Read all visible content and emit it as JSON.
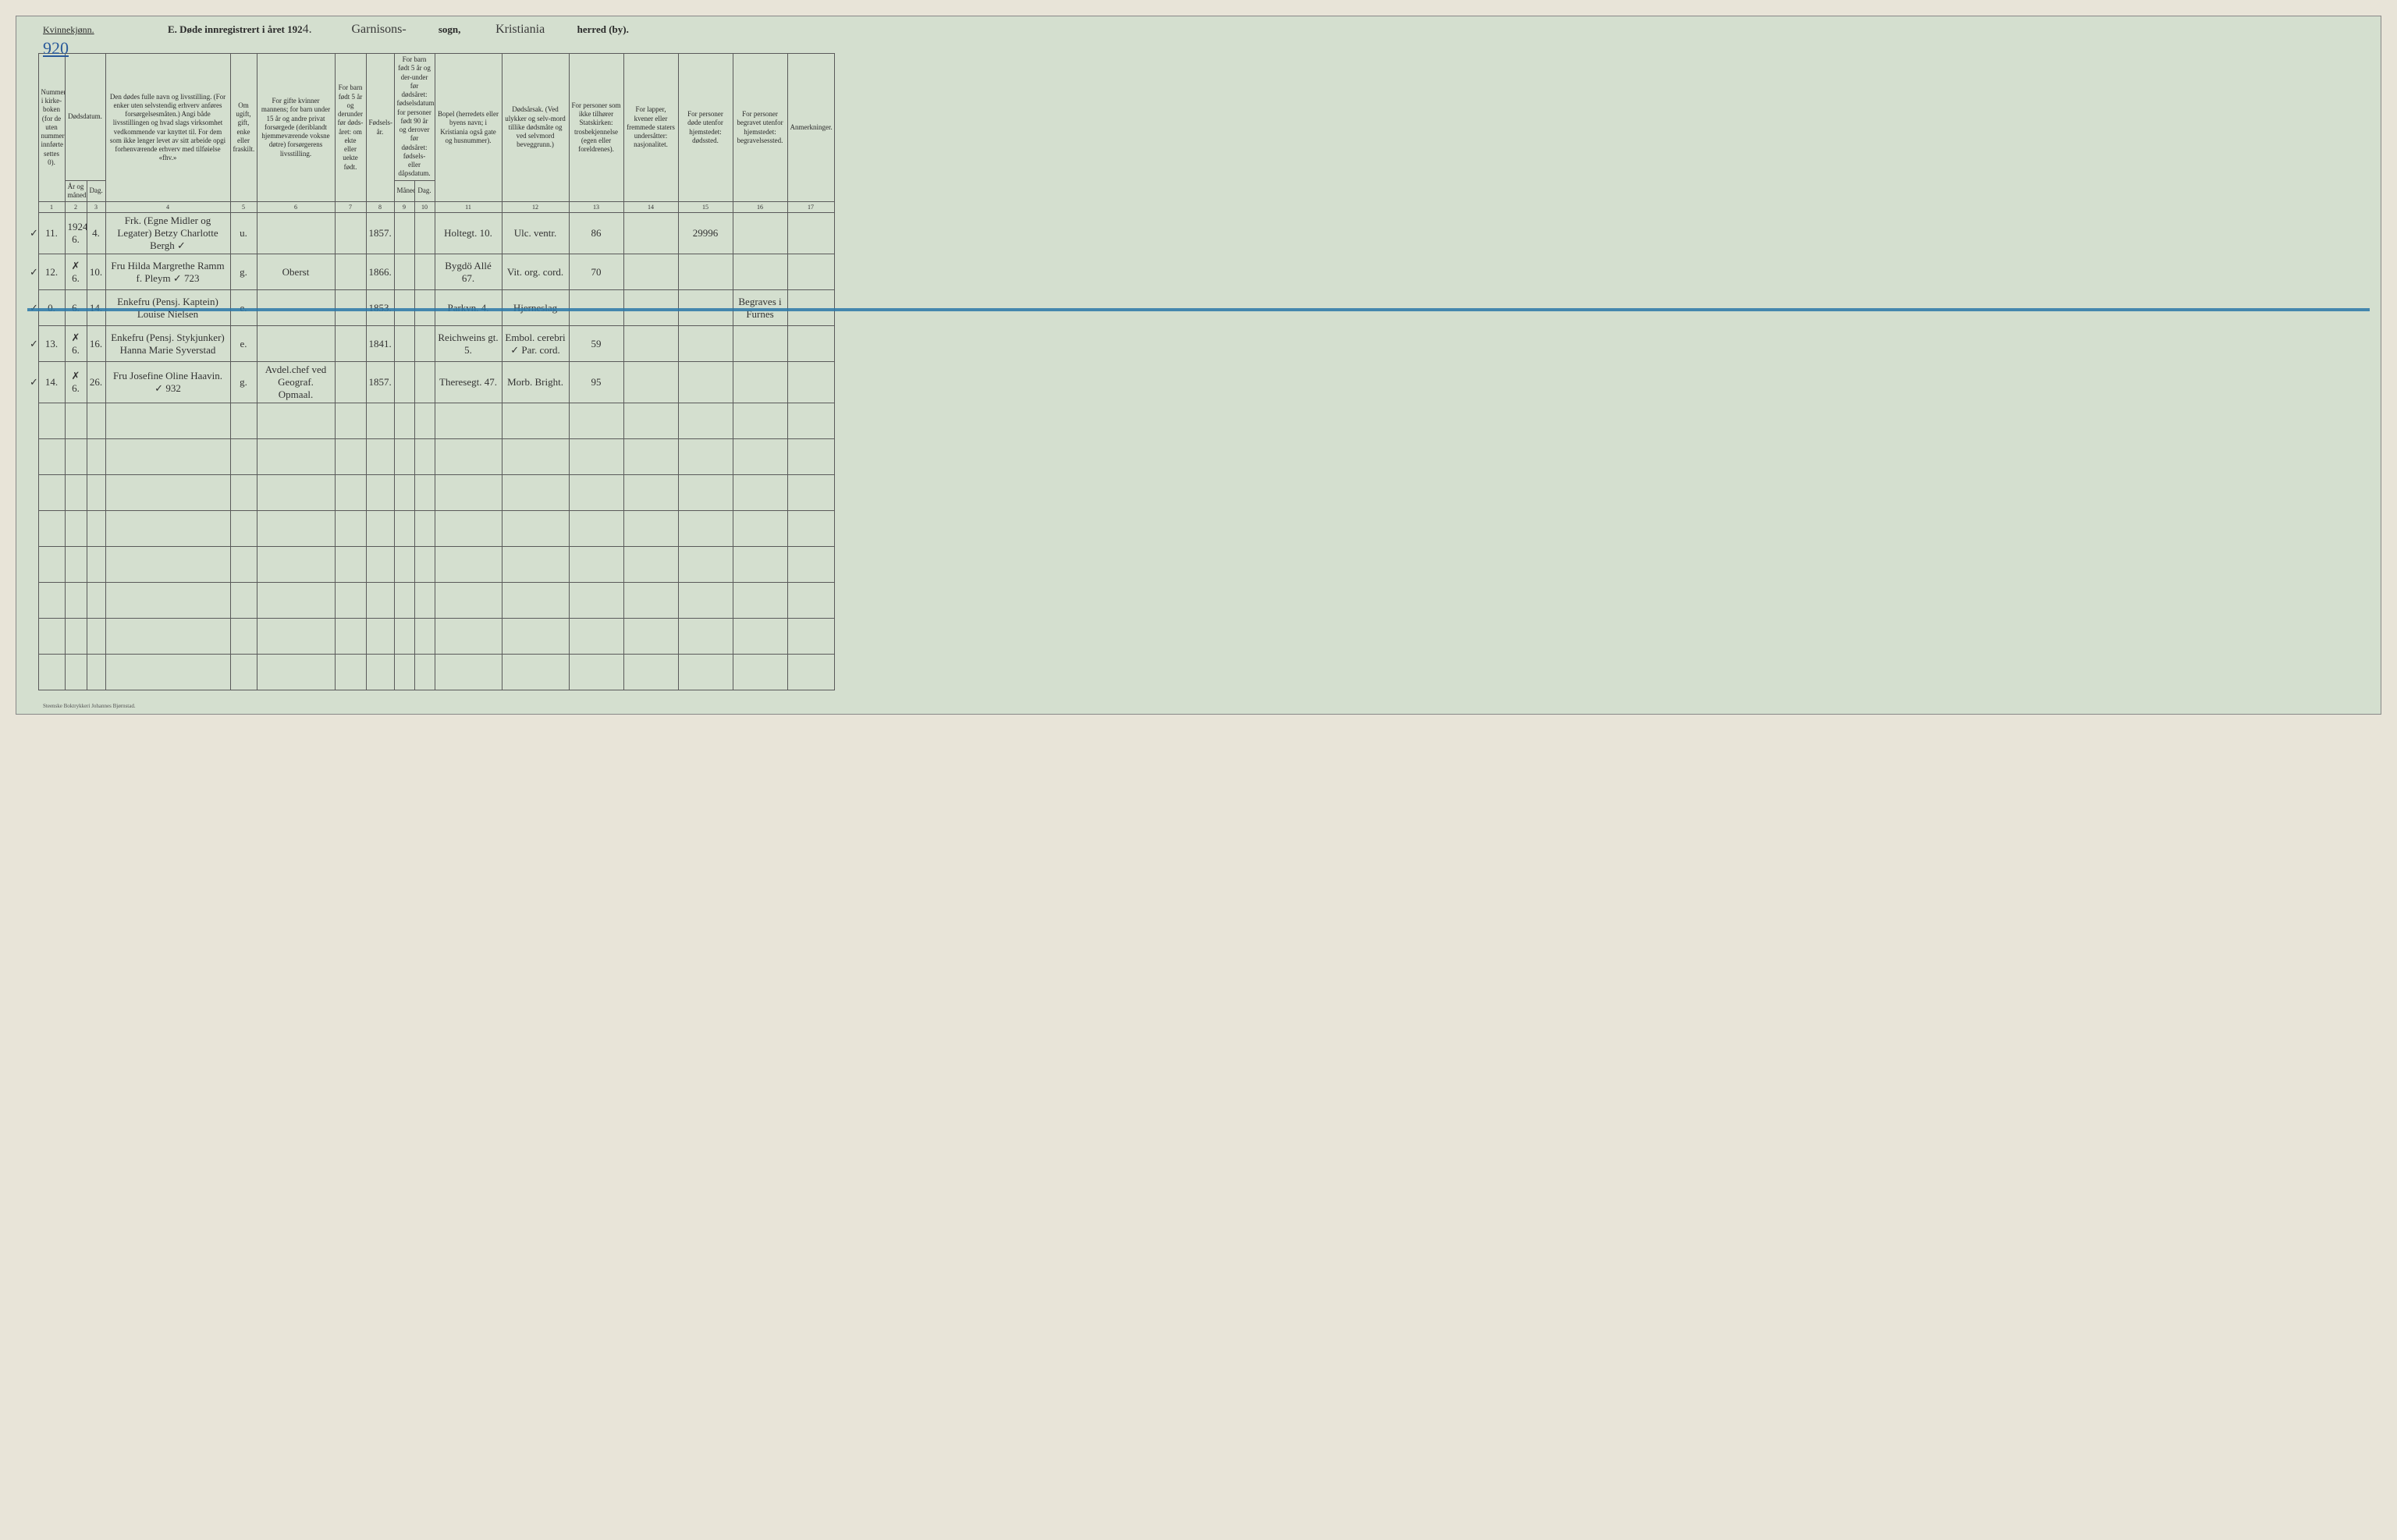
{
  "page": {
    "background_color": "#d4dfcf",
    "border_color": "#5a5a5a",
    "handwriting_color": "#3a3a3a",
    "blue_pencil_color": "#2a5a9a",
    "strike_color": "#2a78a8"
  },
  "header": {
    "gender_label": "Kvinnekjønn.",
    "page_number": "920",
    "title_prefix": "E.  Døde innregistrert i året 192",
    "year_suffix": "4.",
    "parish_value": "Garnisons-",
    "parish_label": "sogn,",
    "district_value": "Kristiania",
    "district_label": "herred (by)."
  },
  "columns": {
    "c1": "Nummer i kirke-boken (for de uten nummer innførte settes 0).",
    "c2": "Dødsdatum.",
    "c2a": "År og måned.",
    "c2b": "Dag.",
    "c3": "Den dødes fulle navn og livsstilling. (For enker uten selvstendig erhverv anføres forsørgelsesmåten.) Angi både livsstillingen og hvad slags virksomhet vedkommende var knyttet til. For dem som ikke lenger levet av sitt arbeide opgi forhenværende erhverv med tilføielse «fhv.»",
    "c4": "Om ugift, gift, enke eller fraskilt.",
    "c5": "For gifte kvinner mannens; for barn under 15 år og andre privat forsørgede (deriblandt hjemmeværende voksne døtre) forsørgerens livsstilling.",
    "c6": "For barn født 5 år og derunder før døds-året: om ekte eller uekte født.",
    "c7": "Fødsels-år.",
    "c8": "For barn født 5 år og der-under før dødsåret: fødselsdatum; for personer født 90 år og derover før dødsåret: fødsels- eller dåpsdatum.",
    "c8a": "Måned.",
    "c8b": "Dag.",
    "c9": "Bopel (herredets eller byens navn; i Kristiania også gate og husnummer).",
    "c10": "Dødsårsak. (Ved ulykker og selv-mord tillike dødsmåte og ved selvmord beveggrunn.)",
    "c11": "For personer som ikke tilhører Statskirken: trosbekjennelse (egen eller foreldrenes).",
    "c12": "For lapper, kvener eller fremmede staters undersåtter: nasjonalitet.",
    "c13": "For personer døde utenfor hjemstedet: dødssted.",
    "c14": "For personer begravet utenfor hjemstedet: begravelsessted.",
    "c15": "Anmerkninger."
  },
  "colnums": [
    "1",
    "2",
    "3",
    "4",
    "5",
    "6",
    "7",
    "8",
    "9",
    "10",
    "11",
    "12",
    "13",
    "14",
    "15",
    "16",
    "17"
  ],
  "rows": [
    {
      "check": "✓",
      "num": "11.",
      "year_month_top": "1924",
      "year_month": "6.",
      "day": "4.",
      "name": "Frk. (Egne Midler og Legater) Betzy Charlotte Bergh ✓",
      "status": "u.",
      "provider": "",
      "legit": "",
      "birth_year": "1857.",
      "bm": "",
      "bd": "",
      "residence": "Holtegt. 10.",
      "cause": "Ulc. ventr.",
      "faith": "86",
      "nation": "",
      "death_place": "29996",
      "burial_place": "",
      "remarks": "",
      "struck": false
    },
    {
      "check": "✓",
      "num": "12.",
      "year_month_top": "✗",
      "year_month": "6.",
      "day": "10.",
      "name": "Fru Hilda Margrethe Ramm f. Pleym ✓ 723",
      "status": "g.",
      "provider": "Oberst",
      "legit": "",
      "birth_year": "1866.",
      "bm": "",
      "bd": "",
      "residence": "Bygdö Allé 67.",
      "cause": "Vit. org. cord.",
      "faith": "70",
      "nation": "",
      "death_place": "",
      "burial_place": "",
      "remarks": "",
      "struck": false
    },
    {
      "check": "✓",
      "num": "0.",
      "year_month_top": "",
      "year_month": "6.",
      "day": "14.",
      "name": "Enkefru (Pensj. Kaptein) Louise Nielsen",
      "status": "e.",
      "provider": "",
      "legit": "",
      "birth_year": "1853.",
      "bm": "",
      "bd": "",
      "residence": "Parkvn. 4.",
      "cause": "Hjerneslag",
      "faith": "",
      "nation": "",
      "death_place": "",
      "burial_place": "Begraves i Furnes",
      "remarks": "",
      "struck": true
    },
    {
      "check": "✓",
      "num": "13.",
      "year_month_top": "✗",
      "year_month": "6.",
      "day": "16.",
      "name": "Enkefru (Pensj. Stykjunker) Hanna Marie Syverstad",
      "status": "e.",
      "provider": "",
      "legit": "",
      "birth_year": "1841.",
      "bm": "",
      "bd": "",
      "residence": "Reichweins gt. 5.",
      "cause": "Embol. cerebri ✓ Par. cord.",
      "faith": "59",
      "nation": "",
      "death_place": "",
      "burial_place": "",
      "remarks": "",
      "struck": false
    },
    {
      "check": "✓",
      "num": "14.",
      "year_month_top": "✗",
      "year_month": "6.",
      "day": "26.",
      "name": "Fru Josefine Oline Haavin. ✓ 932",
      "status": "g.",
      "provider": "Avdel.chef ved Geograf. Opmaal.",
      "legit": "",
      "birth_year": "1857.",
      "bm": "",
      "bd": "",
      "residence": "Theresegt. 47.",
      "cause": "Morb. Bright.",
      "faith": "95",
      "nation": "",
      "death_place": "",
      "burial_place": "",
      "remarks": "",
      "struck": false
    }
  ],
  "empty_row_count": 8,
  "footer": "Steenske Boktrykkeri Johannes Bjørnstad."
}
